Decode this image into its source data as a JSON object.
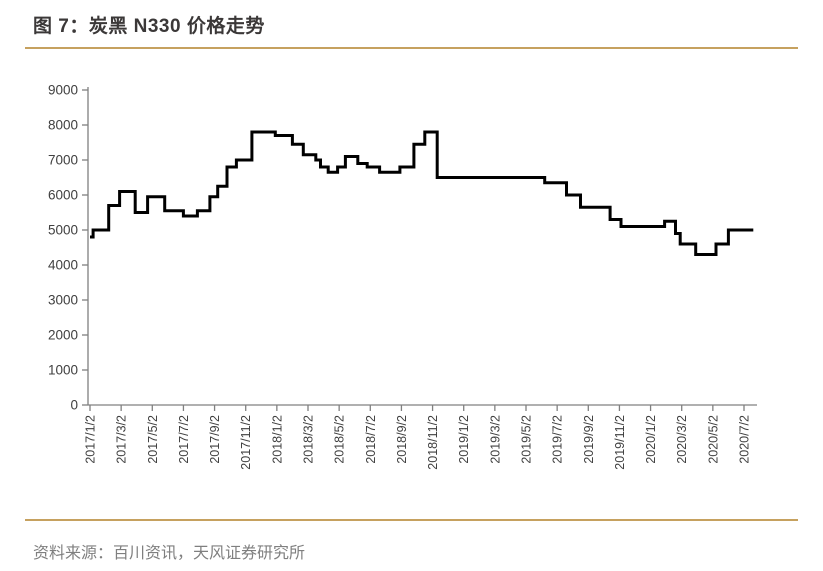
{
  "figure": {
    "title": "图 7：炭黑 N330 价格走势",
    "source": "资料来源：百川资讯，天风证券研究所",
    "accent_color": "#C6A15F",
    "title_color": "#3B3838",
    "source_color": "#7F7F7F"
  },
  "chart_data": {
    "type": "line",
    "subtype": "step",
    "title": "图 7：炭黑 N330 价格走势",
    "xlabel": "",
    "ylabel": "",
    "ylim": [
      0,
      9000
    ],
    "y_ticks": [
      0,
      1000,
      2000,
      3000,
      4000,
      5000,
      6000,
      7000,
      8000,
      9000
    ],
    "grid": false,
    "legend": false,
    "line_color": "#000000",
    "axis_color": "#808080",
    "tick_label_color": "#404040",
    "x_tick_interval_months": 2,
    "x_tick_labels": [
      "2017/1/2",
      "2017/3/2",
      "2017/5/2",
      "2017/7/2",
      "2017/9/2",
      "2017/11/2",
      "2018/1/2",
      "2018/3/2",
      "2018/5/2",
      "2018/7/2",
      "2018/9/2",
      "2018/11/2",
      "2019/1/2",
      "2019/3/2",
      "2019/5/2",
      "2019/7/2",
      "2019/9/2",
      "2019/11/2",
      "2020/1/2",
      "2020/3/2",
      "2020/5/2",
      "2020/7/2"
    ],
    "x_unit": "months_since_2017/1/2",
    "points_step_after": [
      [
        0.0,
        4800
      ],
      [
        0.2,
        5000
      ],
      [
        1.2,
        5700
      ],
      [
        1.9,
        6100
      ],
      [
        2.9,
        5500
      ],
      [
        3.7,
        5950
      ],
      [
        4.8,
        5550
      ],
      [
        6.0,
        5400
      ],
      [
        6.9,
        5550
      ],
      [
        7.7,
        5950
      ],
      [
        8.2,
        6250
      ],
      [
        8.8,
        6800
      ],
      [
        9.4,
        7000
      ],
      [
        10.4,
        7800
      ],
      [
        11.9,
        7700
      ],
      [
        13.0,
        7450
      ],
      [
        13.7,
        7150
      ],
      [
        14.5,
        7000
      ],
      [
        14.8,
        6800
      ],
      [
        15.3,
        6650
      ],
      [
        15.9,
        6800
      ],
      [
        16.4,
        7100
      ],
      [
        17.2,
        6900
      ],
      [
        17.8,
        6800
      ],
      [
        18.6,
        6650
      ],
      [
        19.9,
        6800
      ],
      [
        20.8,
        7450
      ],
      [
        21.5,
        7800
      ],
      [
        22.3,
        6500
      ],
      [
        29.2,
        6350
      ],
      [
        30.6,
        6000
      ],
      [
        31.5,
        5650
      ],
      [
        33.4,
        5300
      ],
      [
        34.1,
        5100
      ],
      [
        36.9,
        5250
      ],
      [
        37.6,
        4900
      ],
      [
        37.9,
        4600
      ],
      [
        38.9,
        4300
      ],
      [
        40.2,
        4600
      ],
      [
        41.0,
        5000
      ],
      [
        42.6,
        5000
      ]
    ]
  }
}
